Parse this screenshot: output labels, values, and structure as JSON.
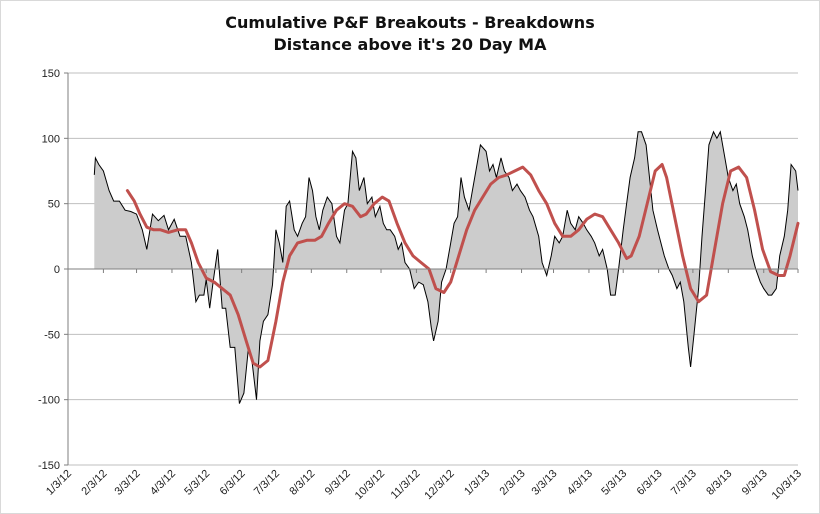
{
  "chart_data": {
    "type": "area",
    "title": "Cumulative P&F Breakouts - Breakdowns",
    "subtitle": "Distance above it's 20 Day MA",
    "xlabel": "",
    "ylabel": "",
    "ylim": [
      -150,
      150
    ],
    "yticks": [
      150,
      100,
      50,
      0,
      -50,
      -100,
      -150
    ],
    "x_tick_labels": [
      "1/3/12",
      "2/3/12",
      "3/3/12",
      "4/3/12",
      "5/3/12",
      "6/3/12",
      "7/3/12",
      "8/3/12",
      "9/3/12",
      "10/3/12",
      "11/3/12",
      "12/3/12",
      "1/3/13",
      "2/3/13",
      "3/3/13",
      "4/3/13",
      "5/3/13",
      "6/3/13",
      "7/3/13",
      "8/3/13",
      "9/3/13",
      "10/3/13"
    ],
    "grid": "horizontal",
    "legend": "none",
    "series": [
      {
        "style": "area",
        "color": "#000000",
        "fill": "#cccccc",
        "points": [
          [
            "1/26/12",
            72
          ],
          [
            "1/27/12",
            85
          ],
          [
            "1/30/12",
            80
          ],
          [
            "2/3/12",
            75
          ],
          [
            "2/8/12",
            60
          ],
          [
            "2/12/12",
            52
          ],
          [
            "2/17/12",
            52
          ],
          [
            "2/22/12",
            45
          ],
          [
            "2/27/12",
            44
          ],
          [
            "3/3/12",
            42
          ],
          [
            "3/8/12",
            30
          ],
          [
            "3/12/12",
            15
          ],
          [
            "3/17/12",
            42
          ],
          [
            "3/22/12",
            37
          ],
          [
            "3/27/12",
            41
          ],
          [
            "3/31/12",
            30
          ],
          [
            "4/5/12",
            38
          ],
          [
            "4/10/12",
            25
          ],
          [
            "4/15/12",
            25
          ],
          [
            "4/20/12",
            5
          ],
          [
            "4/24/12",
            -25
          ],
          [
            "4/27/12",
            -20
          ],
          [
            "5/1/12",
            -20
          ],
          [
            "5/3/12",
            -8
          ],
          [
            "5/6/12",
            -30
          ],
          [
            "5/9/12",
            -10
          ],
          [
            "5/13/12",
            15
          ],
          [
            "5/17/12",
            -30
          ],
          [
            "5/20/12",
            -30
          ],
          [
            "5/24/12",
            -60
          ],
          [
            "5/28/12",
            -60
          ],
          [
            "6/1/12",
            -103
          ],
          [
            "6/5/12",
            -95
          ],
          [
            "6/9/12",
            -60
          ],
          [
            "6/12/12",
            -70
          ],
          [
            "6/16/12",
            -100
          ],
          [
            "6/19/12",
            -55
          ],
          [
            "6/22/12",
            -40
          ],
          [
            "6/26/12",
            -35
          ],
          [
            "6/30/12",
            -12
          ],
          [
            "7/3/12",
            30
          ],
          [
            "7/6/12",
            20
          ],
          [
            "7/9/12",
            5
          ],
          [
            "7/12/12",
            48
          ],
          [
            "7/15/12",
            52
          ],
          [
            "7/19/12",
            30
          ],
          [
            "7/22/12",
            25
          ],
          [
            "7/26/12",
            35
          ],
          [
            "7/29/12",
            40
          ],
          [
            "8/1/12",
            70
          ],
          [
            "8/4/12",
            60
          ],
          [
            "8/7/12",
            40
          ],
          [
            "8/10/12",
            30
          ],
          [
            "8/13/12",
            45
          ],
          [
            "8/17/12",
            55
          ],
          [
            "8/21/12",
            50
          ],
          [
            "8/25/12",
            25
          ],
          [
            "8/28/12",
            20
          ],
          [
            "9/1/12",
            45
          ],
          [
            "9/4/12",
            50
          ],
          [
            "9/8/12",
            90
          ],
          [
            "9/11/12",
            85
          ],
          [
            "9/14/12",
            60
          ],
          [
            "9/18/12",
            70
          ],
          [
            "9/21/12",
            50
          ],
          [
            "9/25/12",
            55
          ],
          [
            "9/28/12",
            40
          ],
          [
            "10/2/12",
            48
          ],
          [
            "10/5/12",
            35
          ],
          [
            "10/8/12",
            30
          ],
          [
            "10/11/12",
            30
          ],
          [
            "10/15/12",
            25
          ],
          [
            "10/18/12",
            15
          ],
          [
            "10/21/12",
            20
          ],
          [
            "10/24/12",
            5
          ],
          [
            "10/28/12",
            0
          ],
          [
            "11/1/12",
            -15
          ],
          [
            "11/5/12",
            -10
          ],
          [
            "11/9/12",
            -12
          ],
          [
            "11/13/12",
            -25
          ],
          [
            "11/16/12",
            -45
          ],
          [
            "11/18/12",
            -55
          ],
          [
            "11/22/12",
            -40
          ],
          [
            "11/25/12",
            -10
          ],
          [
            "11/29/12",
            0
          ],
          [
            "12/3/12",
            20
          ],
          [
            "12/6/12",
            35
          ],
          [
            "12/9/12",
            40
          ],
          [
            "12/12/12",
            70
          ],
          [
            "12/15/12",
            55
          ],
          [
            "12/19/12",
            45
          ],
          [
            "12/22/12",
            60
          ],
          [
            "12/26/12",
            80
          ],
          [
            "12/29/12",
            95
          ],
          [
            "1/3/13",
            90
          ],
          [
            "1/6/13",
            75
          ],
          [
            "1/9/13",
            80
          ],
          [
            "1/12/13",
            70
          ],
          [
            "1/16/13",
            85
          ],
          [
            "1/19/13",
            75
          ],
          [
            "1/23/13",
            70
          ],
          [
            "1/26/13",
            60
          ],
          [
            "1/30/13",
            65
          ],
          [
            "2/2/13",
            60
          ],
          [
            "2/6/13",
            55
          ],
          [
            "2/10/13",
            45
          ],
          [
            "2/13/13",
            40
          ],
          [
            "2/18/13",
            25
          ],
          [
            "2/21/13",
            5
          ],
          [
            "2/25/13",
            -5
          ],
          [
            "3/1/13",
            10
          ],
          [
            "3/4/13",
            25
          ],
          [
            "3/8/13",
            20
          ],
          [
            "3/11/13",
            25
          ],
          [
            "3/15/13",
            45
          ],
          [
            "3/18/13",
            35
          ],
          [
            "3/22/13",
            30
          ],
          [
            "3/25/13",
            40
          ],
          [
            "3/29/13",
            35
          ],
          [
            "4/1/13",
            30
          ],
          [
            "4/5/13",
            25
          ],
          [
            "4/8/13",
            20
          ],
          [
            "4/12/13",
            10
          ],
          [
            "4/15/13",
            15
          ],
          [
            "4/19/13",
            0
          ],
          [
            "4/22/13",
            -20
          ],
          [
            "4/26/13",
            -20
          ],
          [
            "4/29/13",
            0
          ],
          [
            "5/3/13",
            30
          ],
          [
            "5/6/13",
            50
          ],
          [
            "5/9/13",
            70
          ],
          [
            "5/13/13",
            85
          ],
          [
            "5/16/13",
            105
          ],
          [
            "5/19/13",
            105
          ],
          [
            "5/23/13",
            95
          ],
          [
            "5/26/13",
            70
          ],
          [
            "5/29/13",
            45
          ],
          [
            "6/2/13",
            30
          ],
          [
            "6/5/13",
            20
          ],
          [
            "6/8/13",
            10
          ],
          [
            "6/12/13",
            0
          ],
          [
            "6/15/13",
            -5
          ],
          [
            "6/19/13",
            -15
          ],
          [
            "6/22/13",
            -10
          ],
          [
            "6/25/13",
            -25
          ],
          [
            "6/29/13",
            -60
          ],
          [
            "7/1/13",
            -75
          ],
          [
            "7/4/13",
            -50
          ],
          [
            "7/8/13",
            -15
          ],
          [
            "7/11/13",
            25
          ],
          [
            "7/14/13",
            60
          ],
          [
            "7/17/13",
            95
          ],
          [
            "7/21/13",
            105
          ],
          [
            "7/24/13",
            100
          ],
          [
            "7/27/13",
            105
          ],
          [
            "7/31/13",
            85
          ],
          [
            "8/3/13",
            70
          ],
          [
            "8/7/13",
            60
          ],
          [
            "8/10/13",
            65
          ],
          [
            "8/13/13",
            50
          ],
          [
            "8/17/13",
            40
          ],
          [
            "8/20/13",
            30
          ],
          [
            "8/24/13",
            10
          ],
          [
            "8/27/13",
            0
          ],
          [
            "8/31/13",
            -10
          ],
          [
            "9/3/13",
            -15
          ],
          [
            "9/7/13",
            -20
          ],
          [
            "9/10/13",
            -20
          ],
          [
            "9/14/13",
            -15
          ],
          [
            "9/17/13",
            10
          ],
          [
            "9/21/13",
            25
          ],
          [
            "9/24/13",
            45
          ],
          [
            "9/27/13",
            80
          ],
          [
            "10/1/13",
            75
          ],
          [
            "10/3/13",
            60
          ]
        ]
      },
      {
        "style": "line",
        "color": "#c0504d",
        "points": [
          [
            "2/24/12",
            60
          ],
          [
            "3/1/12",
            52
          ],
          [
            "3/6/12",
            42
          ],
          [
            "3/12/12",
            32
          ],
          [
            "3/18/12",
            30
          ],
          [
            "3/24/12",
            30
          ],
          [
            "3/31/12",
            28
          ],
          [
            "4/8/12",
            30
          ],
          [
            "4/15/12",
            30
          ],
          [
            "4/20/12",
            20
          ],
          [
            "4/26/12",
            5
          ],
          [
            "5/3/12",
            -7
          ],
          [
            "5/10/12",
            -10
          ],
          [
            "5/17/12",
            -15
          ],
          [
            "5/24/12",
            -20
          ],
          [
            "5/31/12",
            -35
          ],
          [
            "6/7/12",
            -55
          ],
          [
            "6/13/12",
            -72
          ],
          [
            "6/19/12",
            -75
          ],
          [
            "6/26/12",
            -70
          ],
          [
            "7/3/12",
            -40
          ],
          [
            "7/9/12",
            -10
          ],
          [
            "7/15/12",
            10
          ],
          [
            "7/22/12",
            20
          ],
          [
            "7/30/12",
            22
          ],
          [
            "8/6/12",
            22
          ],
          [
            "8/12/12",
            25
          ],
          [
            "8/18/12",
            35
          ],
          [
            "8/25/12",
            45
          ],
          [
            "9/1/12",
            50
          ],
          [
            "9/8/12",
            48
          ],
          [
            "9/15/12",
            40
          ],
          [
            "9/20/12",
            42
          ],
          [
            "9/27/12",
            50
          ],
          [
            "10/4/12",
            55
          ],
          [
            "10/10/12",
            52
          ],
          [
            "10/17/12",
            35
          ],
          [
            "10/24/12",
            20
          ],
          [
            "10/31/12",
            10
          ],
          [
            "11/7/12",
            5
          ],
          [
            "11/14/12",
            0
          ],
          [
            "11/20/12",
            -15
          ],
          [
            "11/27/12",
            -18
          ],
          [
            "12/3/12",
            -10
          ],
          [
            "12/10/12",
            10
          ],
          [
            "12/17/12",
            30
          ],
          [
            "12/24/12",
            45
          ],
          [
            "12/31/12",
            55
          ],
          [
            "1/7/13",
            65
          ],
          [
            "1/14/13",
            70
          ],
          [
            "1/21/13",
            72
          ],
          [
            "1/28/13",
            75
          ],
          [
            "2/4/13",
            78
          ],
          [
            "2/11/13",
            72
          ],
          [
            "2/18/13",
            60
          ],
          [
            "2/25/13",
            50
          ],
          [
            "3/4/13",
            35
          ],
          [
            "3/11/13",
            25
          ],
          [
            "3/18/13",
            25
          ],
          [
            "3/25/13",
            30
          ],
          [
            "4/1/13",
            38
          ],
          [
            "4/8/13",
            42
          ],
          [
            "4/15/13",
            40
          ],
          [
            "4/22/13",
            30
          ],
          [
            "4/29/13",
            20
          ],
          [
            "5/6/13",
            8
          ],
          [
            "5/10/13",
            10
          ],
          [
            "5/17/13",
            25
          ],
          [
            "5/24/13",
            50
          ],
          [
            "5/31/13",
            75
          ],
          [
            "6/6/13",
            80
          ],
          [
            "6/10/13",
            70
          ],
          [
            "6/17/13",
            40
          ],
          [
            "6/24/13",
            10
          ],
          [
            "7/1/13",
            -15
          ],
          [
            "7/8/13",
            -25
          ],
          [
            "7/15/13",
            -20
          ],
          [
            "7/22/13",
            15
          ],
          [
            "7/29/13",
            50
          ],
          [
            "8/5/13",
            75
          ],
          [
            "8/12/13",
            78
          ],
          [
            "8/19/13",
            70
          ],
          [
            "8/26/13",
            45
          ],
          [
            "9/2/13",
            15
          ],
          [
            "9/9/13",
            -2
          ],
          [
            "9/16/13",
            -5
          ],
          [
            "9/21/13",
            -5
          ],
          [
            "9/26/13",
            10
          ],
          [
            "10/3/13",
            35
          ]
        ]
      }
    ]
  }
}
